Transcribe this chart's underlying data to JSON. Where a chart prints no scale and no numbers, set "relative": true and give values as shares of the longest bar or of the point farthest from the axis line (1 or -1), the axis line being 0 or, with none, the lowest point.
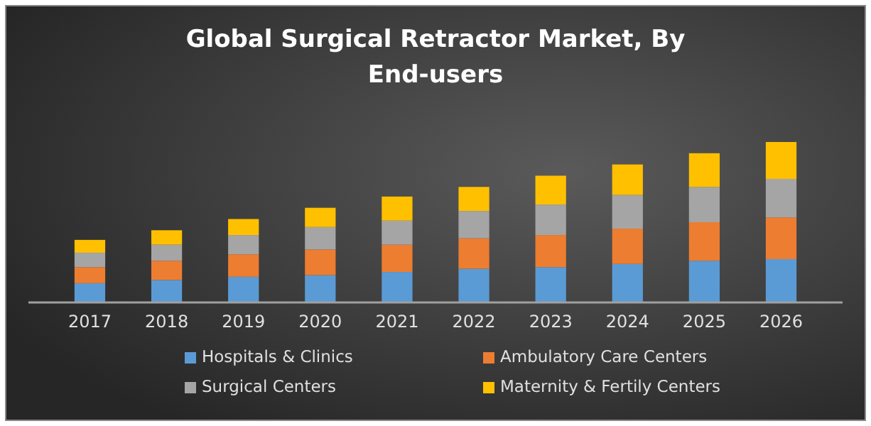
{
  "chart_data": {
    "type": "bar",
    "title": "Global Surgical Retractor Market, By End-users",
    "categories": [
      "2017",
      "2018",
      "2019",
      "2020",
      "2021",
      "2022",
      "2023",
      "2024",
      "2025",
      "2026"
    ],
    "stacked": true,
    "relative": true,
    "legend": "bottom",
    "series": [
      {
        "name": "Hospitals & Clinics",
        "color": "#5b9bd5",
        "values": [
          0.12,
          0.14,
          0.16,
          0.17,
          0.19,
          0.21,
          0.22,
          0.24,
          0.26,
          0.27
        ]
      },
      {
        "name": "Ambulatory Care Centers",
        "color": "#ed7d31",
        "values": [
          0.1,
          0.12,
          0.14,
          0.16,
          0.17,
          0.19,
          0.2,
          0.22,
          0.24,
          0.26
        ]
      },
      {
        "name": "Surgical Centers",
        "color": "#a5a5a5",
        "values": [
          0.09,
          0.1,
          0.12,
          0.14,
          0.15,
          0.17,
          0.19,
          0.21,
          0.22,
          0.24
        ]
      },
      {
        "name": "Maternity & Fertily Centers",
        "color": "#ffc000",
        "values": [
          0.08,
          0.09,
          0.1,
          0.12,
          0.15,
          0.15,
          0.18,
          0.19,
          0.21,
          0.23
        ]
      }
    ]
  }
}
